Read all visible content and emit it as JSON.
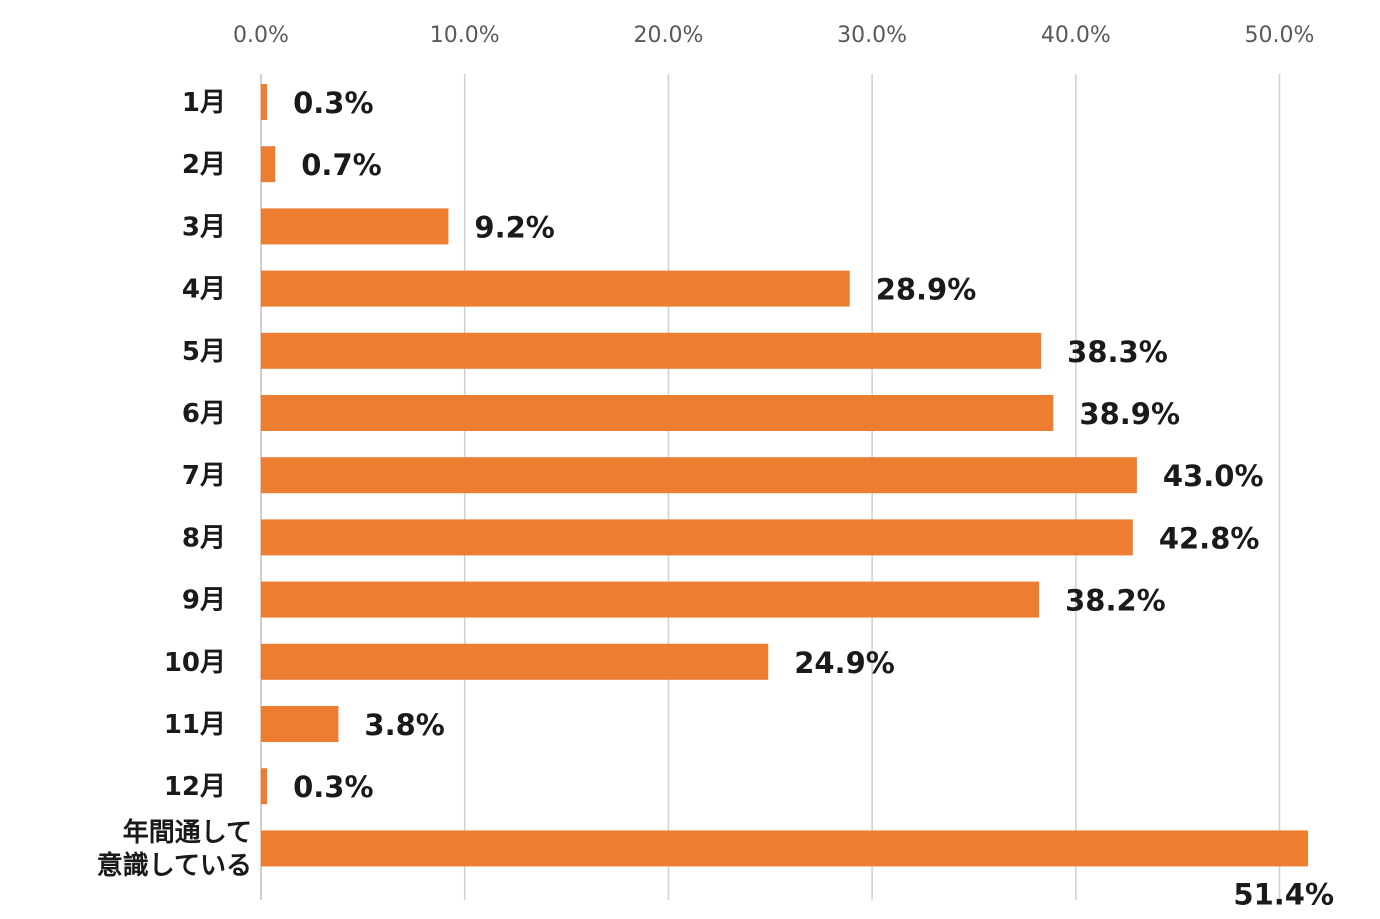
{
  "chart_data": {
    "type": "bar",
    "orientation": "horizontal",
    "categories": [
      [
        "1月"
      ],
      [
        "2月"
      ],
      [
        "3月"
      ],
      [
        "4月"
      ],
      [
        "5月"
      ],
      [
        "6月"
      ],
      [
        "7月"
      ],
      [
        "8月"
      ],
      [
        "9月"
      ],
      [
        "10月"
      ],
      [
        "11月"
      ],
      [
        "12月"
      ],
      [
        "年間通して",
        "意識している"
      ]
    ],
    "values": [
      0.3,
      0.7,
      9.2,
      28.9,
      38.3,
      38.9,
      43.0,
      42.8,
      38.2,
      24.9,
      3.8,
      0.3,
      51.4
    ],
    "value_labels": [
      "0.3%",
      "0.7%",
      "9.2%",
      "28.9%",
      "38.3%",
      "38.9%",
      "43.0%",
      "42.8%",
      "38.2%",
      "24.9%",
      "3.8%",
      "0.3%",
      "51.4%"
    ],
    "x_ticks": [
      0,
      10,
      20,
      30,
      40,
      50
    ],
    "x_tick_labels": [
      "0.0%",
      "10.0%",
      "20.0%",
      "30.0%",
      "40.0%",
      "50.0%"
    ],
    "xlim": [
      0,
      52
    ],
    "x_axis_position": "top",
    "grid": true,
    "bar_color": "#ED7D31",
    "title": "",
    "xlabel": "",
    "ylabel": ""
  }
}
